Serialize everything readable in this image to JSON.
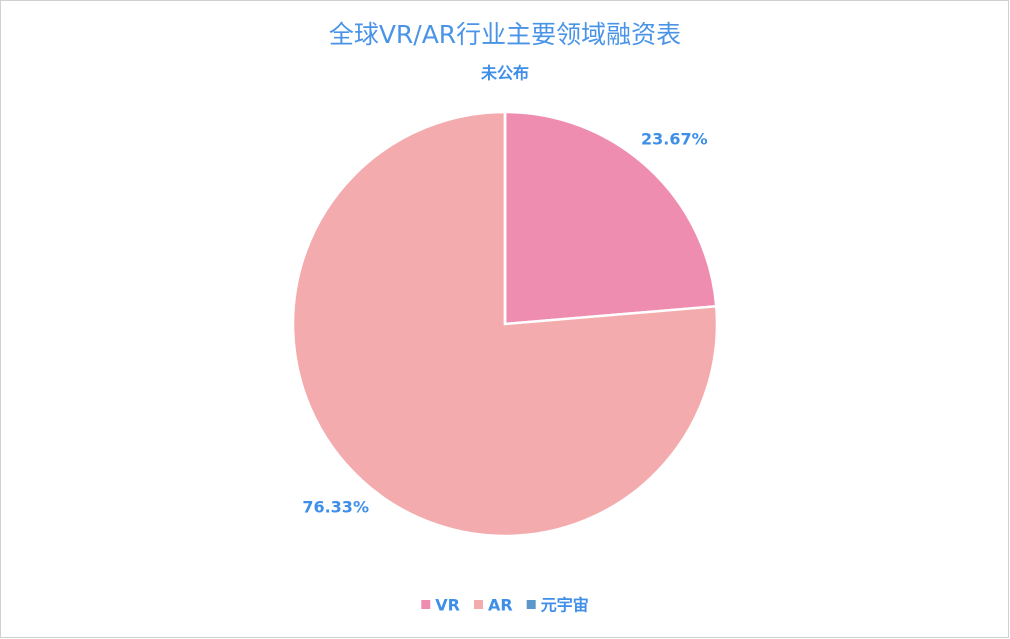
{
  "chart_data": {
    "type": "pie",
    "title": "全球VR/AR行业主要领域融资表",
    "categories": [
      "VR",
      "AR",
      "元宇宙"
    ],
    "values": [
      23.67,
      76.33,
      0
    ],
    "value_labels": [
      "23.67%",
      "76.33%",
      "未公布"
    ],
    "colors": [
      "#ef8db1",
      "#f3abad",
      "#5b97c9"
    ],
    "legend": "bottom"
  }
}
